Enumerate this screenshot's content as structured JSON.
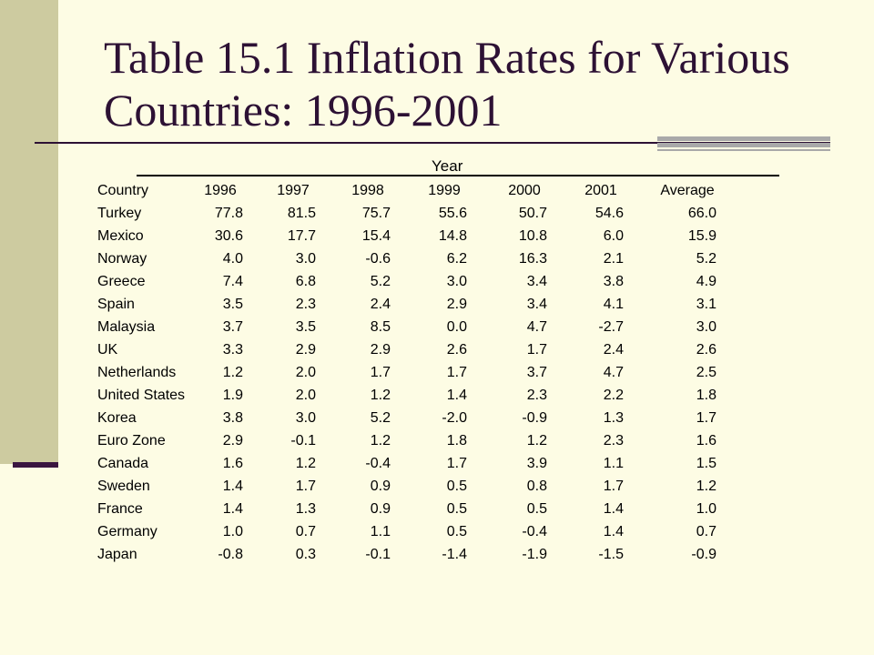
{
  "slide": {
    "title": "Table 15.1 Inflation Rates for Various Countries: 1996-2001"
  },
  "table": {
    "spanner": "Year",
    "header": [
      "Country",
      "1996",
      "1997",
      "1998",
      "1999",
      "2000",
      "2001",
      "Average"
    ],
    "rows": [
      [
        "Turkey",
        "77.8",
        "81.5",
        "75.7",
        "55.6",
        "50.7",
        "54.6",
        "66.0"
      ],
      [
        "Mexico",
        "30.6",
        "17.7",
        "15.4",
        "14.8",
        "10.8",
        "6.0",
        "15.9"
      ],
      [
        "Norway",
        "4.0",
        "3.0",
        "-0.6",
        "6.2",
        "16.3",
        "2.1",
        "5.2"
      ],
      [
        "Greece",
        "7.4",
        "6.8",
        "5.2",
        "3.0",
        "3.4",
        "3.8",
        "4.9"
      ],
      [
        "Spain",
        "3.5",
        "2.3",
        "2.4",
        "2.9",
        "3.4",
        "4.1",
        "3.1"
      ],
      [
        "Malaysia",
        "3.7",
        "3.5",
        "8.5",
        "0.0",
        "4.7",
        "-2.7",
        "3.0"
      ],
      [
        "UK",
        "3.3",
        "2.9",
        "2.9",
        "2.6",
        "1.7",
        "2.4",
        "2.6"
      ],
      [
        "Netherlands",
        "1.2",
        "2.0",
        "1.7",
        "1.7",
        "3.7",
        "4.7",
        "2.5"
      ],
      [
        "United States",
        "1.9",
        "2.0",
        "1.2",
        "1.4",
        "2.3",
        "2.2",
        "1.8"
      ],
      [
        "Korea",
        "3.8",
        "3.0",
        "5.2",
        "-2.0",
        "-0.9",
        "1.3",
        "1.7"
      ],
      [
        "Euro Zone",
        "2.9",
        "-0.1",
        "1.2",
        "1.8",
        "1.2",
        "2.3",
        "1.6"
      ],
      [
        "Canada",
        "1.6",
        "1.2",
        "-0.4",
        "1.7",
        "3.9",
        "1.1",
        "1.5"
      ],
      [
        "Sweden",
        "1.4",
        "1.7",
        "0.9",
        "0.5",
        "0.8",
        "1.7",
        "1.2"
      ],
      [
        "France",
        "1.4",
        "1.3",
        "0.9",
        "0.5",
        "0.5",
        "1.4",
        "1.0"
      ],
      [
        "Germany",
        "1.0",
        "0.7",
        "1.1",
        "0.5",
        "-0.4",
        "1.4",
        "0.7"
      ],
      [
        "Japan",
        "-0.8",
        "0.3",
        "-0.1",
        "-1.4",
        "-1.9",
        "-1.5",
        "-0.9"
      ]
    ]
  }
}
